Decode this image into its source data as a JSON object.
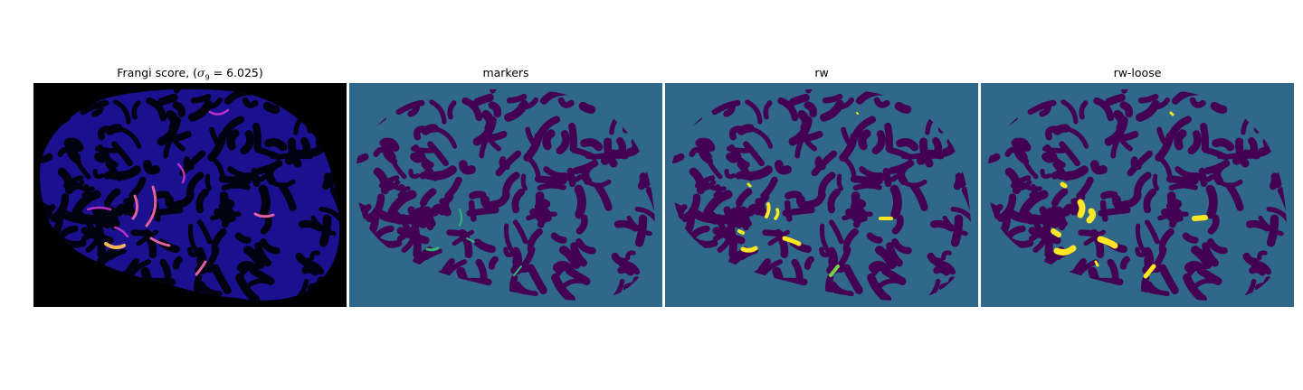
{
  "panels": [
    {
      "title_prefix": "Frangi score, (",
      "title_sigma": "σ",
      "title_sub": "9",
      "title_suffix": " = 6.025)",
      "background": "#000000",
      "blob_fill": "#1a0c8c",
      "highlight_colors": [
        "#6a10b8",
        "#b830c8",
        "#e060a0",
        "#f3b35c"
      ]
    },
    {
      "title": "markers",
      "background": "#30688a",
      "blob_fill": "#440154",
      "highlight_colors": [
        "#35b779"
      ]
    },
    {
      "title": "rw",
      "background": "#30688a",
      "blob_fill": "#440154",
      "highlight_colors": [
        "#fde725",
        "#7ad151"
      ]
    },
    {
      "title": "rw-loose",
      "background": "#30688a",
      "blob_fill": "#440154",
      "highlight_colors": [
        "#fde725",
        "#c2df23"
      ]
    }
  ]
}
